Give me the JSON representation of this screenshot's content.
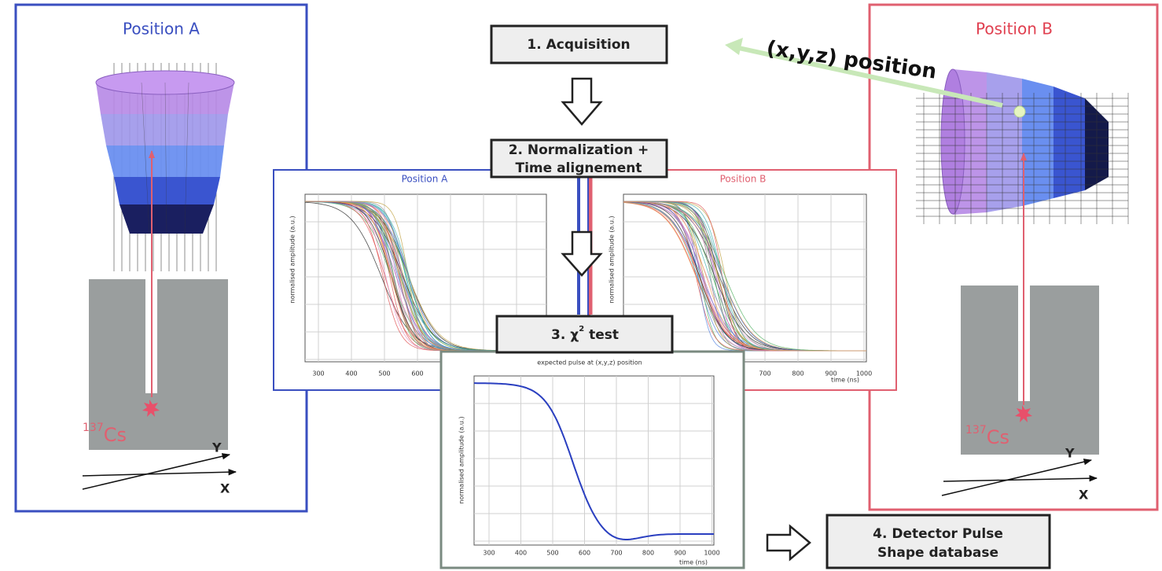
{
  "left_panel": {
    "title": "Position A",
    "source": {
      "mass": "137",
      "element": "Cs"
    },
    "axes": {
      "y": "Y",
      "x": "X"
    }
  },
  "right_panel": {
    "title": "Position B",
    "source": {
      "mass": "137",
      "element": "Cs"
    },
    "axes": {
      "y": "Y",
      "x": "X"
    }
  },
  "steps": {
    "acquisition": "1. Acquisition",
    "normalization": [
      "2. Normalization +",
      "Time alignement"
    ],
    "chi2": {
      "prefix": "3. χ",
      "sup": "2",
      "suffix": " test"
    },
    "database": [
      "4. Detector Pulse",
      "Shape database"
    ]
  },
  "position_label": "(x,y,z) position",
  "plots": [
    {
      "title": "Position A",
      "ylabel": "normalised amplitude (a.u.)",
      "xticks": [
        "300",
        "400",
        "500",
        "600"
      ]
    },
    {
      "title": "Position B",
      "ylabel": "normalised amplitude (a.u.)",
      "xlabel": "time (ns)",
      "xticks": [
        "700",
        "800",
        "900",
        "1000"
      ]
    },
    {
      "title": "expected pulse at (x,y,z) position",
      "ylabel": "normalised amplitude (a.u.)",
      "xlabel": "time (ns)",
      "xticks": [
        "300",
        "400",
        "500",
        "600",
        "700",
        "800",
        "900",
        "1000"
      ]
    }
  ]
}
